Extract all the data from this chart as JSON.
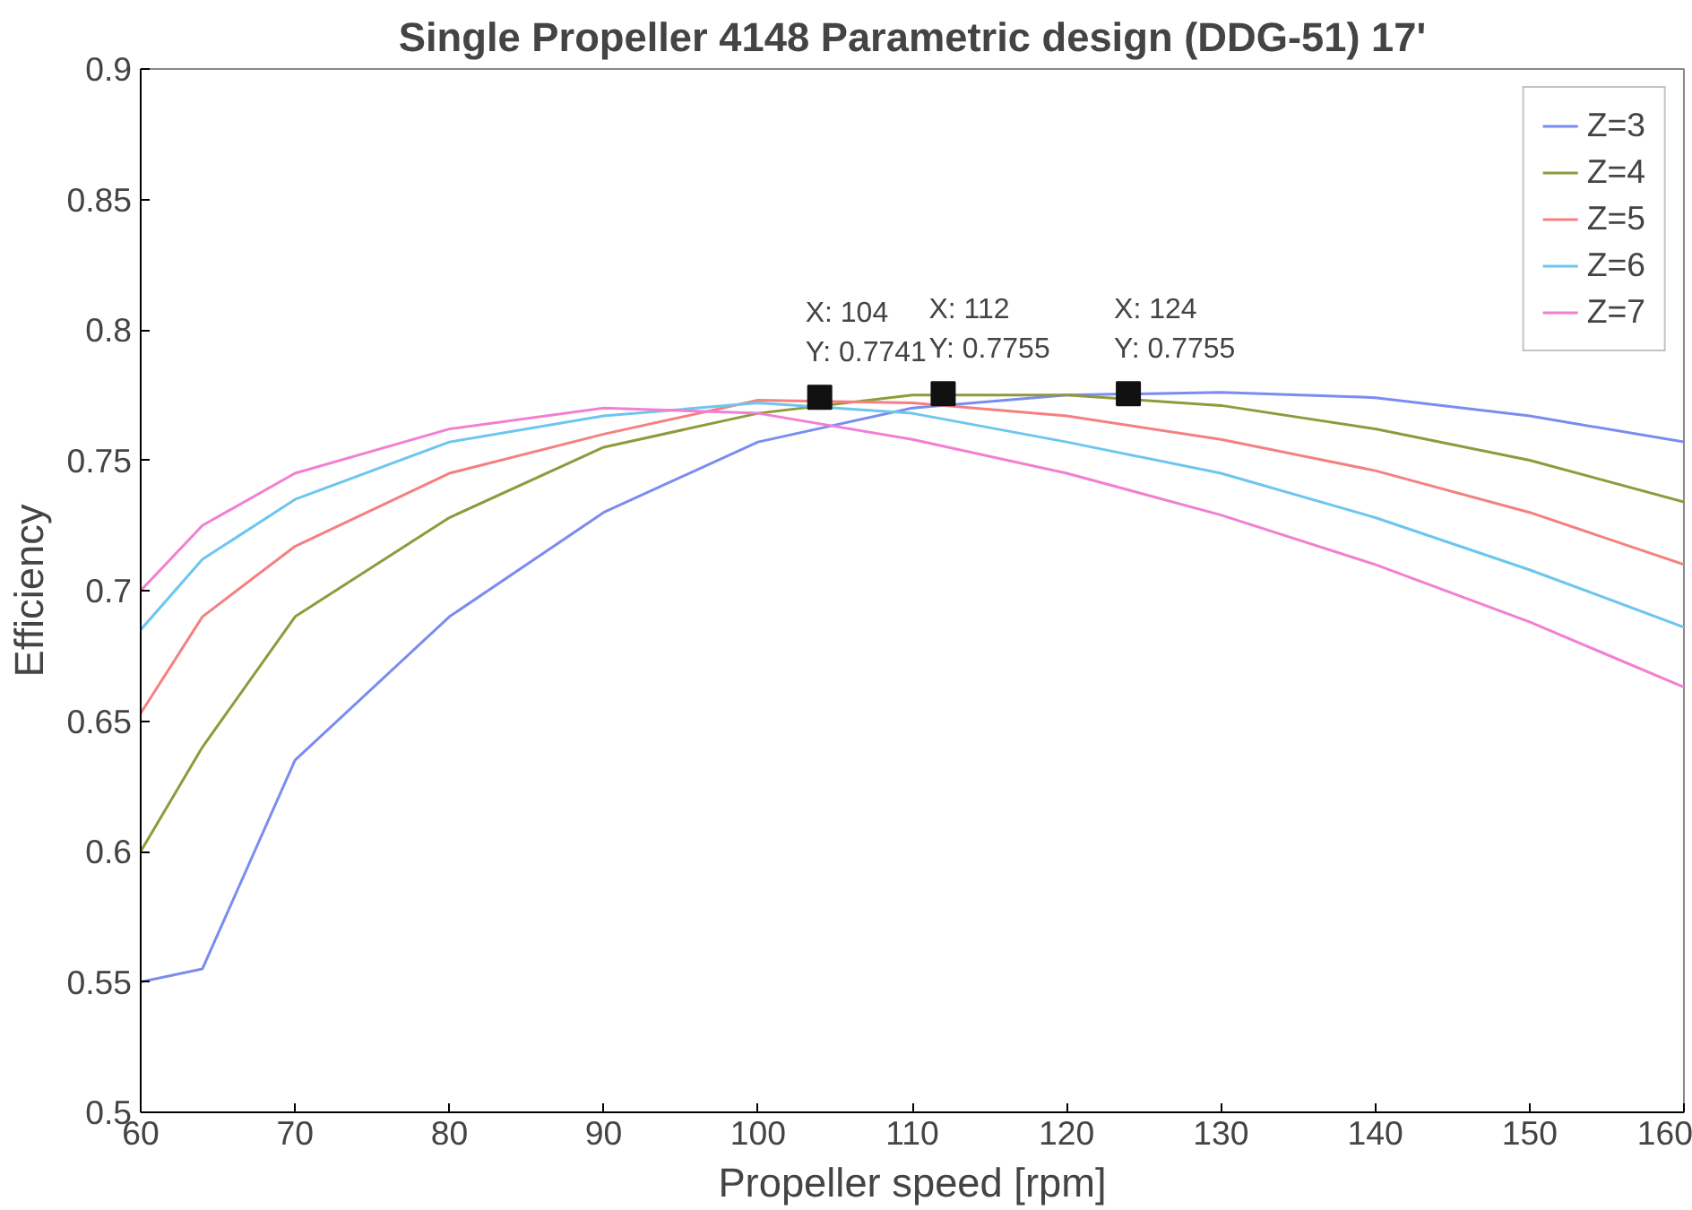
{
  "chart_data": {
    "type": "line",
    "title": "Single Propeller 4148 Parametric design (DDG-51) 17'",
    "xlabel": "Propeller speed [rpm]",
    "ylabel": "Efficiency",
    "x": [
      60,
      64,
      70,
      80,
      90,
      100,
      110,
      120,
      130,
      140,
      150,
      160
    ],
    "series": [
      {
        "name": "Z=3",
        "color": "#7b8cf0",
        "values": [
          0.55,
          0.555,
          0.635,
          0.69,
          0.73,
          0.757,
          0.77,
          0.775,
          0.776,
          0.774,
          0.767,
          0.757
        ]
      },
      {
        "name": "Z=4",
        "color": "#8f9a3c",
        "values": [
          0.6,
          0.64,
          0.69,
          0.728,
          0.755,
          0.768,
          0.775,
          0.775,
          0.771,
          0.762,
          0.75,
          0.734
        ]
      },
      {
        "name": "Z=5",
        "color": "#f58080",
        "values": [
          0.653,
          0.69,
          0.717,
          0.745,
          0.76,
          0.773,
          0.772,
          0.767,
          0.758,
          0.746,
          0.73,
          0.71
        ]
      },
      {
        "name": "Z=6",
        "color": "#6cc6ee",
        "values": [
          0.685,
          0.712,
          0.735,
          0.757,
          0.767,
          0.772,
          0.768,
          0.757,
          0.745,
          0.728,
          0.708,
          0.686
        ]
      },
      {
        "name": "Z=7",
        "color": "#f27fd2",
        "values": [
          0.7,
          0.725,
          0.745,
          0.762,
          0.77,
          0.768,
          0.758,
          0.745,
          0.729,
          0.71,
          0.688,
          0.663
        ]
      }
    ],
    "annotations": [
      {
        "text": "X: 104\nY: 0.7741",
        "x": 104,
        "y": 0.7741
      },
      {
        "text": "X: 112\nY: 0.7755",
        "x": 112,
        "y": 0.7755
      },
      {
        "text": "X: 124\nY: 0.7755",
        "x": 124,
        "y": 0.7755
      }
    ],
    "xlim": [
      60,
      160
    ],
    "ylim": [
      0.5,
      0.9
    ],
    "xticks": [
      60,
      70,
      80,
      90,
      100,
      110,
      120,
      130,
      140,
      150,
      160
    ],
    "yticks": [
      0.5,
      0.55,
      0.6,
      0.65,
      0.7,
      0.75,
      0.8,
      0.85,
      0.9
    ],
    "legend": "top right",
    "grid": false,
    "marker": "none",
    "line_style": "solid"
  }
}
